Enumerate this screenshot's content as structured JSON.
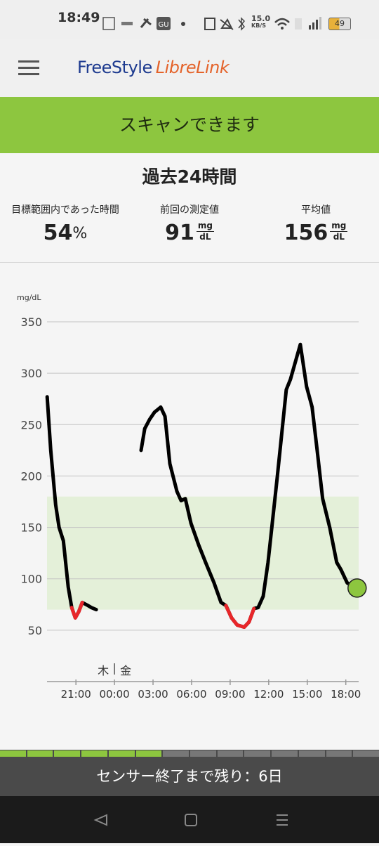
{
  "status_bar": {
    "time": "18:49",
    "net_speed": "15.0",
    "net_unit": "KB/S",
    "battery": "49"
  },
  "header": {
    "brand_1": "FreeStyle",
    "brand_2": "LibreLink"
  },
  "banner": "スキャンできます",
  "summary": {
    "title": "過去24時間",
    "stats": [
      {
        "label": "目標範囲内であった時間",
        "value": 54,
        "unit": "%"
      },
      {
        "label": "前回の測定値",
        "value": 91,
        "unit_top": "mg",
        "unit_bottom": "dL"
      },
      {
        "label": "平均値",
        "value": 156,
        "unit_top": "mg",
        "unit_bottom": "dL"
      }
    ]
  },
  "chart_data": {
    "type": "line",
    "y_label": "mg/dL",
    "day_labels": [
      "木",
      "金"
    ],
    "x": [
      18.76,
      19.04,
      19.42,
      19.69,
      20.02,
      20.4,
      20.67,
      20.95,
      21.22,
      21.49,
      21.93,
      22.2,
      22.58,
      null,
      26.07,
      26.35,
      26.73,
      27.11,
      27.6,
      27.93,
      28.31,
      28.86,
      29.18,
      29.51,
      29.95,
      30.55,
      31.09,
      31.75,
      32.29,
      32.67,
      33.11,
      33.55,
      34.09,
      34.47,
      34.85,
      35.18,
      35.57,
      35.95,
      36.66,
      37.37,
      37.69,
      38.46,
      38.95,
      39.38,
      39.77,
      40.2,
      40.75,
      41.29,
      41.62,
      42.11,
      42.88
    ],
    "series": [
      {
        "color": "#000000",
        "values": [
          277,
          225,
          172,
          150,
          137,
          92,
          72,
          62,
          68,
          77,
          74,
          72,
          70,
          null,
          225,
          246,
          255,
          262,
          267,
          258,
          212,
          185,
          176,
          178,
          154,
          133,
          116,
          96,
          77,
          74,
          62,
          55,
          53,
          58,
          71,
          72,
          83,
          116,
          198,
          284,
          294,
          328,
          287,
          267,
          225,
          178,
          150,
          116,
          109,
          96,
          91
        ]
      }
    ],
    "low_color": "#e8262a",
    "target_range": [
      70,
      180
    ],
    "target_color": "#e4f0d9",
    "current_color": "#8dc63f",
    "xlim": [
      18.75,
      43
    ],
    "ylim": [
      0,
      350
    ],
    "xticks": [
      {
        "value": 21,
        "label": "21:00"
      },
      {
        "value": 24,
        "label": "00:00"
      },
      {
        "value": 27,
        "label": "03:00"
      },
      {
        "value": 30,
        "label": "06:00"
      },
      {
        "value": 33,
        "label": "09:00"
      },
      {
        "value": 36,
        "label": "12:00"
      },
      {
        "value": 39,
        "label": "15:00"
      },
      {
        "value": 42,
        "label": "18:00"
      }
    ],
    "yticks": [
      50,
      100,
      150,
      200,
      250,
      300,
      350
    ],
    "grid": true
  },
  "sensor": {
    "text": "センサー終了まで残り：6日",
    "segments": 14,
    "filled": 6
  }
}
